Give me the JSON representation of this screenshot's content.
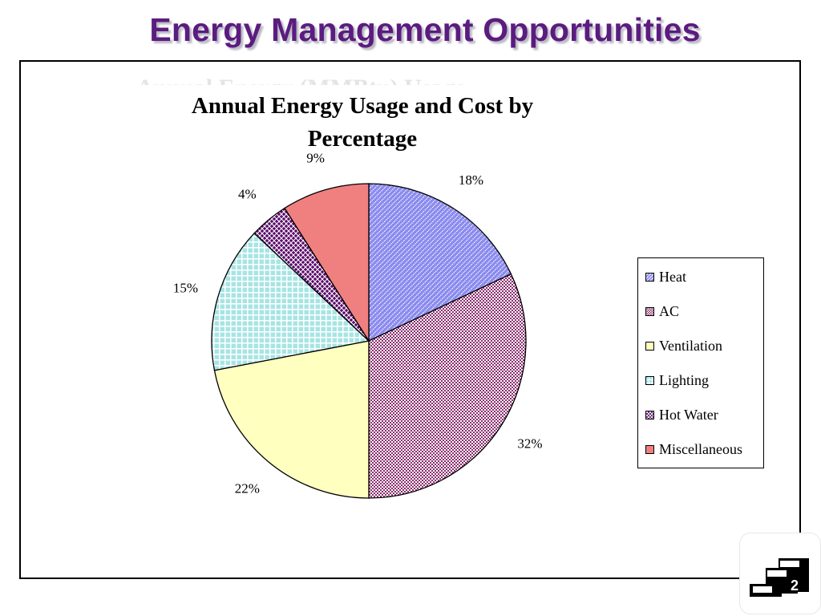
{
  "slide": {
    "title": "Energy Management Opportunities",
    "page_number": "2",
    "obscured_heading_fragment": "Annual Energy (MMBtu) Usage"
  },
  "chart_data": {
    "type": "pie",
    "title": "Annual Energy Usage and Cost by Percentage",
    "legend_position": "right",
    "slices": [
      {
        "name": "Heat",
        "value": 18,
        "label": "18%",
        "color": "#8a8aee",
        "pattern": "diagonal-dots"
      },
      {
        "name": "AC",
        "value": 32,
        "label": "32%",
        "color": "#8b2d6e",
        "pattern": "checker"
      },
      {
        "name": "Ventilation",
        "value": 22,
        "label": "22%",
        "color": "#ffffc0",
        "pattern": "solid"
      },
      {
        "name": "Lighting",
        "value": 15,
        "label": "15%",
        "color": "#a8e4e4",
        "pattern": "grid"
      },
      {
        "name": "Hot Water",
        "value": 4,
        "label": "4%",
        "color": "#5a0a6a",
        "pattern": "diamond"
      },
      {
        "name": "Miscellaneous",
        "value": 9,
        "label": "9%",
        "color": "#f08080",
        "pattern": "solid"
      }
    ]
  }
}
